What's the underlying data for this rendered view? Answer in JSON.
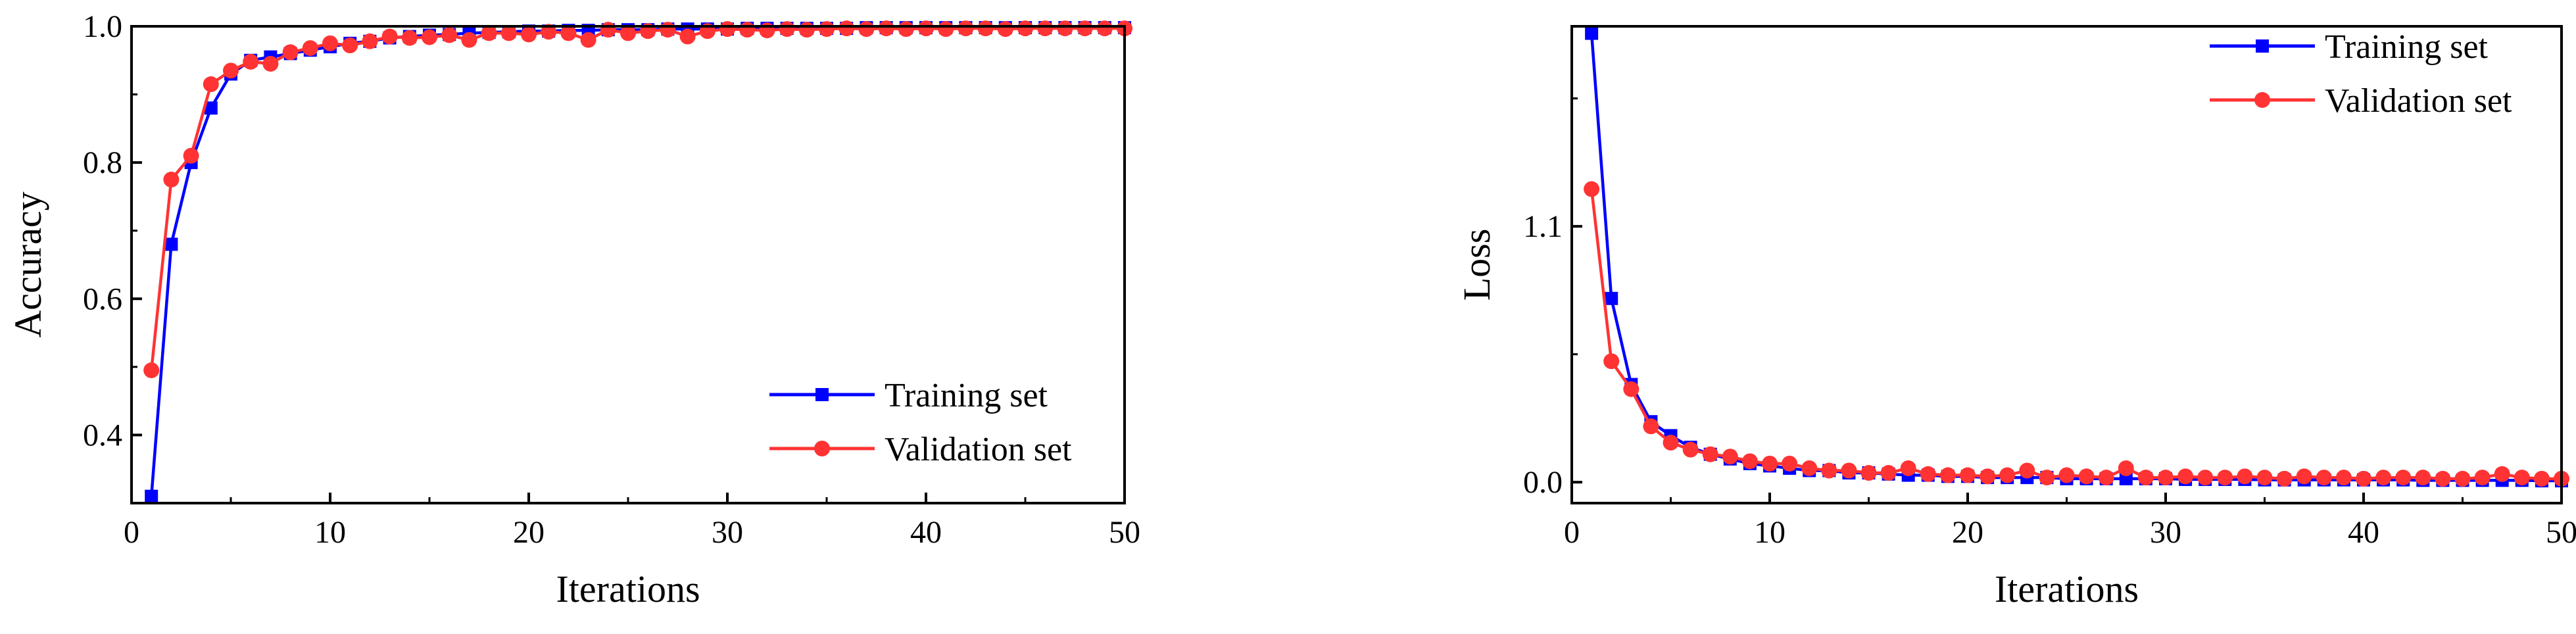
{
  "chart_data": [
    {
      "type": "line",
      "title": "",
      "xlabel": "Iterations",
      "ylabel": "Accuracy",
      "xlim": [
        0,
        50
      ],
      "ylim": [
        0.3,
        1.0
      ],
      "xticks": [
        0,
        10,
        20,
        30,
        40,
        50
      ],
      "yticks": [
        0.4,
        0.6,
        0.8,
        1.0
      ],
      "xtick_labels": [
        "0",
        "10",
        "20",
        "30",
        "40",
        "50"
      ],
      "ytick_labels": [
        "0.4",
        "0.6",
        "0.8",
        "1.0"
      ],
      "grid": false,
      "legend_position": "lower-right",
      "x": [
        1,
        2,
        3,
        4,
        5,
        6,
        7,
        8,
        9,
        10,
        11,
        12,
        13,
        14,
        15,
        16,
        17,
        18,
        19,
        20,
        21,
        22,
        23,
        24,
        25,
        26,
        27,
        28,
        29,
        30,
        31,
        32,
        33,
        34,
        35,
        36,
        37,
        38,
        39,
        40,
        41,
        42,
        43,
        44,
        45,
        46,
        47,
        48,
        49,
        50
      ],
      "series": [
        {
          "name": "Training set",
          "color": "#0000ff",
          "marker": "square",
          "values": [
            0.31,
            0.68,
            0.8,
            0.88,
            0.93,
            0.95,
            0.955,
            0.96,
            0.965,
            0.97,
            0.975,
            0.978,
            0.983,
            0.985,
            0.987,
            0.988,
            0.99,
            0.991,
            0.992,
            0.993,
            0.993,
            0.994,
            0.994,
            0.995,
            0.995,
            0.995,
            0.996,
            0.996,
            0.996,
            0.996,
            0.997,
            0.997,
            0.997,
            0.997,
            0.997,
            0.997,
            0.998,
            0.998,
            0.998,
            0.998,
            0.998,
            0.998,
            0.998,
            0.998,
            0.998,
            0.998,
            0.998,
            0.998,
            0.998,
            0.998
          ]
        },
        {
          "name": "Validation set",
          "color": "#ff3333",
          "marker": "circle",
          "values": [
            0.495,
            0.775,
            0.81,
            0.915,
            0.935,
            0.948,
            0.945,
            0.962,
            0.968,
            0.975,
            0.972,
            0.978,
            0.985,
            0.983,
            0.984,
            0.987,
            0.98,
            0.99,
            0.99,
            0.988,
            0.992,
            0.99,
            0.98,
            0.995,
            0.99,
            0.993,
            0.995,
            0.985,
            0.993,
            0.996,
            0.995,
            0.994,
            0.996,
            0.995,
            0.996,
            0.997,
            0.996,
            0.997,
            0.996,
            0.997,
            0.996,
            0.997,
            0.997,
            0.996,
            0.997,
            0.997,
            0.997,
            0.997,
            0.997,
            0.997
          ]
        }
      ]
    },
    {
      "type": "line",
      "title": "",
      "xlabel": "Iterations",
      "ylabel": "Loss",
      "xlim": [
        0,
        50
      ],
      "ylim": [
        -0.09,
        1.96
      ],
      "xticks": [
        0,
        10,
        20,
        30,
        40,
        50
      ],
      "yticks": [
        0.0,
        1.1
      ],
      "xtick_labels": [
        "0",
        "10",
        "20",
        "30",
        "40",
        "50"
      ],
      "ytick_labels": [
        "0.0",
        "1.1"
      ],
      "grid": false,
      "legend_position": "top-right",
      "x": [
        1,
        2,
        3,
        4,
        5,
        6,
        7,
        8,
        9,
        10,
        11,
        12,
        13,
        14,
        15,
        16,
        17,
        18,
        19,
        20,
        21,
        22,
        23,
        24,
        25,
        26,
        27,
        28,
        29,
        30,
        31,
        32,
        33,
        34,
        35,
        36,
        37,
        38,
        39,
        40,
        41,
        42,
        43,
        44,
        45,
        46,
        47,
        48,
        49,
        50
      ],
      "series": [
        {
          "name": "Training set",
          "color": "#0000ff",
          "marker": "square",
          "values": [
            1.93,
            0.79,
            0.42,
            0.26,
            0.2,
            0.15,
            0.12,
            0.1,
            0.08,
            0.07,
            0.06,
            0.05,
            0.05,
            0.04,
            0.04,
            0.035,
            0.03,
            0.03,
            0.025,
            0.025,
            0.02,
            0.02,
            0.02,
            0.02,
            0.015,
            0.015,
            0.015,
            0.015,
            0.015,
            0.015,
            0.012,
            0.012,
            0.012,
            0.012,
            0.01,
            0.01,
            0.01,
            0.01,
            0.01,
            0.01,
            0.01,
            0.01,
            0.008,
            0.008,
            0.008,
            0.008,
            0.008,
            0.008,
            0.006,
            0.006
          ]
        },
        {
          "name": "Validation set",
          "color": "#ff3333",
          "marker": "circle",
          "values": [
            1.26,
            0.52,
            0.4,
            0.24,
            0.17,
            0.14,
            0.12,
            0.11,
            0.09,
            0.08,
            0.08,
            0.06,
            0.05,
            0.05,
            0.04,
            0.04,
            0.06,
            0.035,
            0.03,
            0.03,
            0.025,
            0.03,
            0.05,
            0.02,
            0.03,
            0.025,
            0.02,
            0.06,
            0.02,
            0.02,
            0.025,
            0.02,
            0.02,
            0.025,
            0.02,
            0.015,
            0.025,
            0.02,
            0.02,
            0.015,
            0.02,
            0.02,
            0.02,
            0.015,
            0.015,
            0.02,
            0.035,
            0.02,
            0.015,
            0.015
          ]
        }
      ]
    }
  ]
}
